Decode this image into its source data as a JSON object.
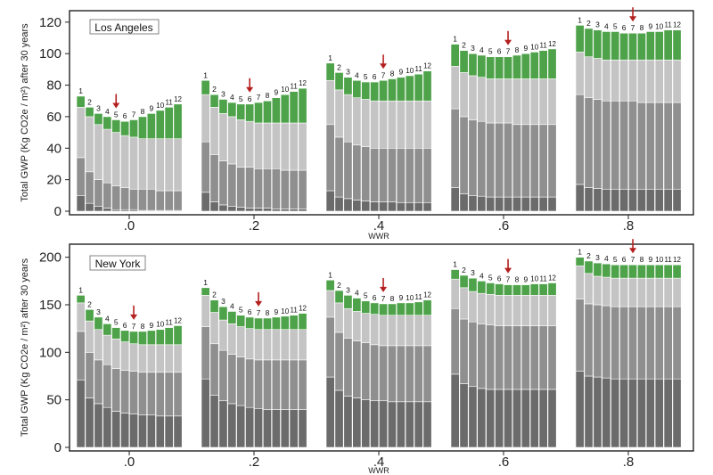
{
  "chart_data": [
    {
      "type": "bar",
      "stacked": true,
      "city": "Los Angeles",
      "ylabel": "Total GWP (Kg CO2e / m²) after 30 years",
      "xlabel": "WWR",
      "ylim": [
        0,
        125
      ],
      "yticks": [
        0,
        20,
        40,
        60,
        80,
        100,
        120
      ],
      "groups": [
        ".0",
        ".2",
        ".4",
        ".6",
        ".8"
      ],
      "bar_labels": [
        "1",
        "2",
        "3",
        "4",
        "5",
        "6",
        "7",
        "8",
        "9",
        "10",
        "11",
        "12"
      ],
      "arrow_bar": [
        5,
        6,
        7,
        7,
        7
      ],
      "segment_colors": [
        "#6b6b6b",
        "#8f8f8f",
        "#c4c4c4",
        "#4ea34a"
      ],
      "totals": [
        [
          73,
          66,
          62,
          60,
          58,
          57,
          58,
          60,
          62,
          64,
          66,
          68
        ],
        [
          83,
          74,
          71,
          69,
          68,
          68,
          69,
          70,
          72,
          74,
          76,
          78
        ],
        [
          94,
          88,
          85,
          83,
          82,
          82,
          83,
          84,
          85,
          86,
          87,
          89
        ],
        [
          106,
          102,
          100,
          99,
          98,
          98,
          98,
          99,
          100,
          101,
          102,
          103
        ],
        [
          118,
          116,
          115,
          114,
          114,
          113,
          113,
          113,
          114,
          114,
          115,
          115
        ]
      ],
      "bottoms": [
        [
          10,
          5,
          3,
          2,
          1,
          1,
          1,
          0.5,
          0.5,
          0.5,
          0.5,
          0.5
        ],
        [
          12,
          6,
          4,
          3,
          2.5,
          2,
          2,
          2,
          1.5,
          1.5,
          1.5,
          1.5
        ],
        [
          13,
          9,
          8,
          7,
          6.5,
          6,
          6,
          6,
          5.5,
          5.5,
          5.5,
          5.5
        ],
        [
          15,
          11,
          10,
          9.5,
          9,
          9,
          9,
          9,
          9,
          9,
          9,
          9
        ],
        [
          17,
          15,
          14.5,
          14,
          14,
          14,
          14,
          14,
          14,
          14,
          14,
          14
        ]
      ],
      "mids": [
        [
          34,
          25,
          20,
          18,
          16,
          15,
          14,
          14,
          14,
          13,
          13,
          13
        ],
        [
          44,
          36,
          32,
          30,
          28,
          28,
          27,
          27,
          27,
          26,
          26,
          26
        ],
        [
          55,
          47,
          44,
          42,
          41,
          40,
          40,
          40,
          40,
          40,
          40,
          40
        ],
        [
          65,
          60,
          58,
          57,
          56,
          56,
          56,
          55,
          55,
          55,
          55,
          55
        ],
        [
          74,
          72,
          71,
          70,
          70,
          70,
          70,
          69,
          69,
          69,
          69,
          69
        ]
      ],
      "lights": [
        [
          66,
          60,
          55,
          52,
          50,
          48,
          47,
          46,
          46,
          46,
          46,
          46
        ],
        [
          74,
          66,
          62,
          60,
          58,
          57,
          56,
          56,
          56,
          56,
          56,
          56
        ],
        [
          83,
          77,
          74,
          72,
          71,
          70,
          70,
          70,
          70,
          70,
          70,
          70
        ],
        [
          92,
          88,
          86,
          85,
          84,
          84,
          84,
          84,
          84,
          84,
          84,
          84
        ],
        [
          101,
          98,
          97,
          96,
          96,
          96,
          96,
          96,
          96,
          96,
          96,
          96
        ]
      ]
    },
    {
      "type": "bar",
      "stacked": true,
      "city": "New York",
      "ylabel": "Total GWP (Kg CO2e / m²) after 30 years",
      "xlabel": "WWR",
      "ylim": [
        0,
        210
      ],
      "yticks": [
        0,
        50,
        100,
        150,
        200
      ],
      "groups": [
        ".0",
        ".2",
        ".4",
        ".6",
        ".8"
      ],
      "bar_labels": [
        "1",
        "2",
        "3",
        "4",
        "5",
        "6",
        "7",
        "8",
        "9",
        "10",
        "11",
        "12"
      ],
      "arrow_bar": [
        7,
        7,
        7,
        7,
        7
      ],
      "segment_colors": [
        "#6b6b6b",
        "#8f8f8f",
        "#c4c4c4",
        "#4ea34a"
      ],
      "totals": [
        [
          160,
          145,
          137,
          130,
          126,
          123,
          122,
          122,
          123,
          124,
          126,
          128
        ],
        [
          168,
          155,
          148,
          143,
          139,
          137,
          136,
          136,
          137,
          138,
          139,
          141
        ],
        [
          176,
          165,
          160,
          157,
          154,
          152,
          151,
          151,
          152,
          152,
          153,
          155
        ],
        [
          187,
          181,
          178,
          175,
          173,
          172,
          171,
          171,
          171,
          172,
          172,
          173
        ],
        [
          200,
          196,
          194,
          193,
          192,
          192,
          192,
          192,
          192,
          192,
          192,
          192
        ]
      ],
      "bottoms": [
        [
          71,
          52,
          46,
          42,
          38,
          36,
          35,
          34,
          34,
          33,
          33,
          33
        ],
        [
          72,
          55,
          49,
          46,
          44,
          42,
          41,
          40,
          40,
          40,
          40,
          40
        ],
        [
          74,
          60,
          54,
          52,
          50,
          49,
          49,
          48,
          48,
          48,
          48,
          48
        ],
        [
          77,
          67,
          64,
          62,
          61,
          61,
          61,
          61,
          61,
          61,
          61,
          61
        ],
        [
          80,
          75,
          74,
          73,
          72,
          72,
          72,
          72,
          72,
          72,
          72,
          72
        ]
      ],
      "mids": [
        [
          122,
          100,
          92,
          87,
          83,
          81,
          80,
          79,
          79,
          79,
          79,
          79
        ],
        [
          127,
          109,
          102,
          98,
          95,
          93,
          92,
          92,
          92,
          92,
          92,
          92
        ],
        [
          137,
          121,
          115,
          112,
          110,
          108,
          107,
          107,
          107,
          107,
          107,
          107
        ],
        [
          146,
          135,
          132,
          130,
          129,
          128,
          128,
          128,
          128,
          128,
          128,
          128
        ],
        [
          156,
          151,
          150,
          149,
          148,
          148,
          148,
          148,
          148,
          148,
          148,
          148
        ]
      ],
      "lights": [
        [
          152,
          133,
          124,
          118,
          114,
          111,
          109,
          108,
          108,
          108,
          108,
          108
        ],
        [
          160,
          142,
          134,
          130,
          127,
          125,
          124,
          124,
          124,
          124,
          124,
          124
        ],
        [
          165,
          152,
          146,
          143,
          141,
          140,
          139,
          139,
          139,
          139,
          139,
          139
        ],
        [
          177,
          168,
          164,
          162,
          161,
          160,
          160,
          160,
          160,
          160,
          160,
          160
        ],
        [
          191,
          183,
          180,
          179,
          178,
          178,
          178,
          178,
          178,
          178,
          178,
          178
        ]
      ]
    }
  ]
}
